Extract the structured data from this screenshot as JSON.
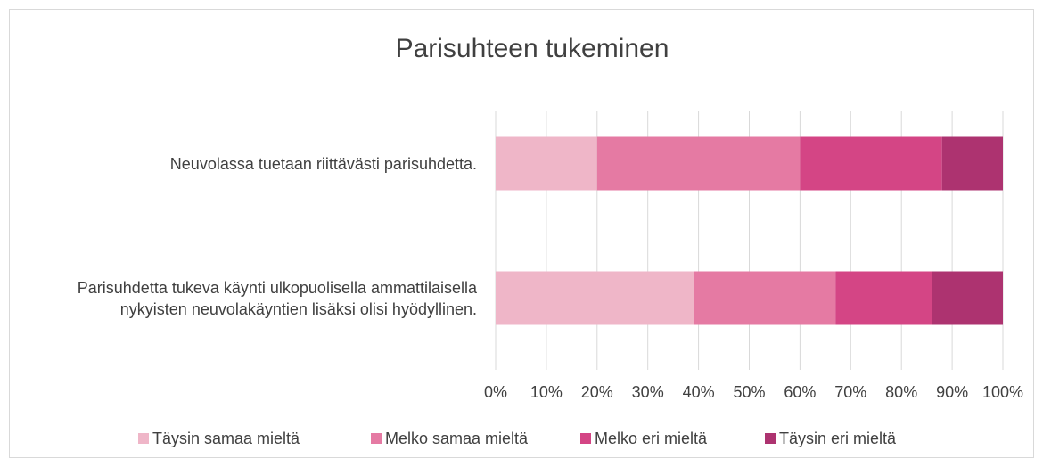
{
  "chart_data": {
    "type": "stacked-bar-horizontal",
    "title": "Parisuhteen tukeminen",
    "categories": [
      "Neuvolassa tuetaan riittävästi parisuhdetta.",
      "Parisuhdetta tukeva käynti ulkopuolisella ammattilaisella nykyisten neuvolakäyntien lisäksi olisi hyödyllinen."
    ],
    "series": [
      {
        "name": "Täysin samaa mieltä",
        "color": "#efb6c8",
        "values": [
          20,
          39
        ]
      },
      {
        "name": "Melko samaa mieltä",
        "color": "#e57aa3",
        "values": [
          40,
          28
        ]
      },
      {
        "name": "Melko eri mieltä",
        "color": "#d44585",
        "values": [
          28,
          19
        ]
      },
      {
        "name": "Täysin eri mieltä",
        "color": "#ad3370",
        "values": [
          12,
          14
        ]
      }
    ],
    "xlim": [
      0,
      100
    ],
    "xticks": [
      {
        "value": 0,
        "label": "0%"
      },
      {
        "value": 10,
        "label": "10%"
      },
      {
        "value": 20,
        "label": "20%"
      },
      {
        "value": 30,
        "label": "30%"
      },
      {
        "value": 40,
        "label": "40%"
      },
      {
        "value": 50,
        "label": "50%"
      },
      {
        "value": 60,
        "label": "60%"
      },
      {
        "value": 70,
        "label": "70%"
      },
      {
        "value": 80,
        "label": "80%"
      },
      {
        "value": 90,
        "label": "90%"
      },
      {
        "value": 100,
        "label": "100%"
      }
    ],
    "grid": true,
    "legend": "bottom"
  }
}
